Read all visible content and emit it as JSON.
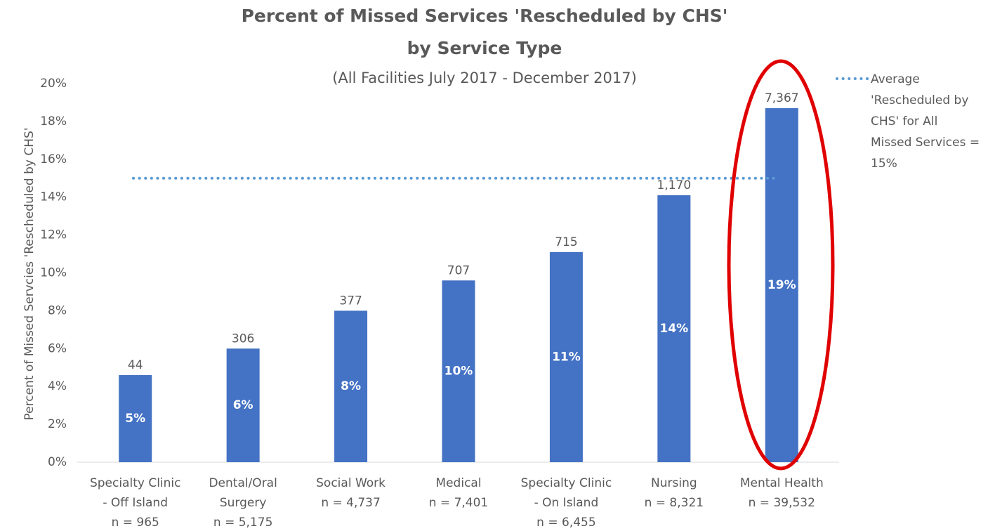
{
  "chart_data": {
    "type": "bar",
    "title": [
      "Percent of Missed Services 'Rescheduled by CHS'",
      "by Service Type"
    ],
    "subtitle": "(All Facilities July 2017 - December 2017)",
    "y_label": "Percent of Missed Servcies 'Rescheduled by CHS'",
    "categories": [
      [
        "Specialty Clinic",
        "- Off Island",
        "n = 965"
      ],
      [
        "Dental/Oral",
        "Surgery",
        "n = 5,175"
      ],
      [
        "Social Work",
        "n = 4,737"
      ],
      [
        "Medical",
        "n = 7,401"
      ],
      [
        "Specialty Clinic",
        "- On Island",
        "n = 6,455"
      ],
      [
        "Nursing",
        "n = 8,321"
      ],
      [
        "Mental Health",
        "n = 39,532"
      ]
    ],
    "series": [
      {
        "color": "#4472c4",
        "values": [
          4.6,
          6.0,
          8.0,
          9.6,
          11.1,
          14.1,
          18.7
        ],
        "value_labels": [
          "5%",
          "6%",
          "8%",
          "10%",
          "11%",
          "14%",
          "19%"
        ],
        "count_labels": [
          "44",
          "306",
          "377",
          "707",
          "715",
          "1,170",
          "7,367"
        ]
      }
    ],
    "reference_line": {
      "value": 15,
      "color": "#5b9bd5",
      "legend": [
        "Average",
        "'Rescheduled by",
        "CHS' for All",
        "Missed Services =",
        "15%"
      ]
    },
    "ylim": [
      0,
      20
    ],
    "yticks": [
      {
        "value": 0,
        "label": "0%"
      },
      {
        "value": 2,
        "label": "2%"
      },
      {
        "value": 4,
        "label": "4%"
      },
      {
        "value": 6,
        "label": "6%"
      },
      {
        "value": 8,
        "label": "8%"
      },
      {
        "value": 10,
        "label": "10%"
      },
      {
        "value": 12,
        "label": "12%"
      },
      {
        "value": 14,
        "label": "14%"
      },
      {
        "value": 16,
        "label": "16%"
      },
      {
        "value": 18,
        "label": "18%"
      },
      {
        "value": 20,
        "label": "20%"
      }
    ],
    "grid": false
  }
}
